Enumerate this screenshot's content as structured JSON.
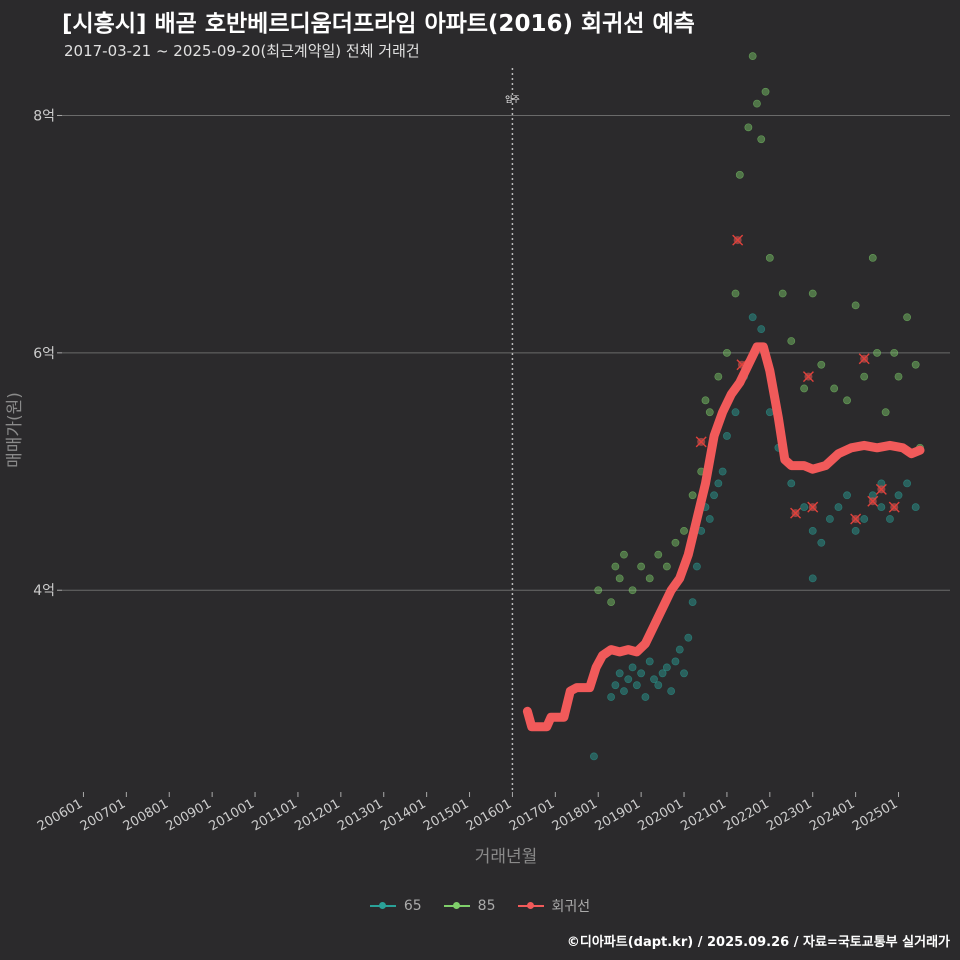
{
  "header": {
    "title": "[시흥시] 배곧 호반베르디움더프라임 아파트(2016) 회귀선 예측",
    "subtitle": "2017-03-21 ~ 2025-09-20(최근계약일) 전체 거래건"
  },
  "footer": {
    "credit": "©디아파트(dapt.kr) / 2025.09.26 / 자료=국토교통부 실거래가"
  },
  "legend": [
    {
      "label": "65",
      "color": "#2aa198"
    },
    {
      "label": "85",
      "color": "#7fcf6a"
    },
    {
      "label": "회귀선",
      "color": "#f15a5a"
    }
  ],
  "chart_data": {
    "type": "scatter",
    "title": "[시흥시] 배곧 호반베르디움더프라임 아파트(2016) 회귀선 예측",
    "xlabel": "거래년월",
    "ylabel": "매매가(원)",
    "x_ticks": [
      "200601",
      "200701",
      "200801",
      "200901",
      "201001",
      "201101",
      "201201",
      "201301",
      "201401",
      "201501",
      "201601",
      "201701",
      "201801",
      "201901",
      "202001",
      "202101",
      "202201",
      "202301",
      "202401",
      "202501"
    ],
    "y_ticks": [
      {
        "value": 4,
        "label": "4억"
      },
      {
        "value": 6,
        "label": "6억"
      },
      {
        "value": 8,
        "label": "8억"
      }
    ],
    "xlim": [
      2005.5,
      2026.2
    ],
    "ylim": [
      2.3,
      8.4
    ],
    "grid": "horizontal",
    "legend_position": "bottom",
    "vline": {
      "x": 2016.0,
      "label": "입주"
    },
    "colors": {
      "65": "#2aa198",
      "85": "#7fcf6a",
      "regression": "#f15a5a"
    },
    "series": [
      {
        "name": "65",
        "points": [
          [
            2018.3,
            3.1
          ],
          [
            2018.4,
            3.2
          ],
          [
            2018.5,
            3.3
          ],
          [
            2018.6,
            3.15
          ],
          [
            2018.7,
            3.25
          ],
          [
            2018.8,
            3.35
          ],
          [
            2018.9,
            3.2
          ],
          [
            2019.0,
            3.3
          ],
          [
            2019.1,
            3.1
          ],
          [
            2019.2,
            3.4
          ],
          [
            2019.3,
            3.25
          ],
          [
            2019.4,
            3.2
          ],
          [
            2019.5,
            3.3
          ],
          [
            2019.6,
            3.35
          ],
          [
            2019.7,
            3.15
          ],
          [
            2019.8,
            3.4
          ],
          [
            2019.9,
            3.5
          ],
          [
            2020.0,
            3.3
          ],
          [
            2020.1,
            3.6
          ],
          [
            2020.2,
            3.9
          ],
          [
            2020.3,
            4.2
          ],
          [
            2020.4,
            4.5
          ],
          [
            2020.5,
            4.7
          ],
          [
            2020.6,
            4.6
          ],
          [
            2020.7,
            4.8
          ],
          [
            2020.8,
            4.9
          ],
          [
            2020.9,
            5.0
          ],
          [
            2021.0,
            5.3
          ],
          [
            2021.2,
            5.5
          ],
          [
            2021.4,
            5.8
          ],
          [
            2021.6,
            6.3
          ],
          [
            2021.8,
            6.2
          ],
          [
            2022.0,
            5.5
          ],
          [
            2022.2,
            5.2
          ],
          [
            2022.5,
            4.9
          ],
          [
            2022.8,
            4.7
          ],
          [
            2023.0,
            4.5
          ],
          [
            2023.2,
            4.4
          ],
          [
            2023.4,
            4.6
          ],
          [
            2023.6,
            4.7
          ],
          [
            2023.8,
            4.8
          ],
          [
            2024.0,
            4.5
          ],
          [
            2024.2,
            4.6
          ],
          [
            2024.4,
            4.8
          ],
          [
            2024.6,
            4.9
          ],
          [
            2024.8,
            4.6
          ],
          [
            2025.0,
            4.8
          ],
          [
            2025.2,
            4.9
          ],
          [
            2025.4,
            4.7
          ],
          [
            2017.9,
            2.6
          ],
          [
            2023.0,
            4.1
          ],
          [
            2024.6,
            4.7
          ]
        ]
      },
      {
        "name": "85",
        "points": [
          [
            2018.0,
            4.0
          ],
          [
            2018.3,
            3.9
          ],
          [
            2018.4,
            4.2
          ],
          [
            2018.5,
            4.1
          ],
          [
            2018.6,
            4.3
          ],
          [
            2018.8,
            4.0
          ],
          [
            2019.0,
            4.2
          ],
          [
            2019.2,
            4.1
          ],
          [
            2019.4,
            4.3
          ],
          [
            2019.6,
            4.2
          ],
          [
            2019.8,
            4.4
          ],
          [
            2020.0,
            4.5
          ],
          [
            2020.2,
            4.8
          ],
          [
            2020.4,
            5.0
          ],
          [
            2020.6,
            5.5
          ],
          [
            2020.8,
            5.8
          ],
          [
            2021.0,
            6.0
          ],
          [
            2021.2,
            6.5
          ],
          [
            2021.3,
            7.5
          ],
          [
            2021.5,
            7.9
          ],
          [
            2021.6,
            8.5
          ],
          [
            2021.7,
            8.1
          ],
          [
            2021.8,
            7.8
          ],
          [
            2021.9,
            8.2
          ],
          [
            2022.0,
            6.8
          ],
          [
            2022.3,
            6.5
          ],
          [
            2022.5,
            6.1
          ],
          [
            2022.8,
            5.7
          ],
          [
            2023.0,
            6.5
          ],
          [
            2023.2,
            5.9
          ],
          [
            2023.5,
            5.7
          ],
          [
            2023.8,
            5.6
          ],
          [
            2024.0,
            6.4
          ],
          [
            2024.2,
            5.8
          ],
          [
            2024.4,
            6.8
          ],
          [
            2024.5,
            6.0
          ],
          [
            2024.7,
            5.5
          ],
          [
            2024.9,
            6.0
          ],
          [
            2025.0,
            5.8
          ],
          [
            2025.2,
            6.3
          ],
          [
            2025.4,
            5.9
          ],
          [
            2025.5,
            5.2
          ],
          [
            2020.5,
            5.6
          ],
          [
            2020.7,
            5.3
          ]
        ]
      },
      {
        "name": "회귀선",
        "points": [
          [
            2016.35,
            2.98
          ],
          [
            2016.45,
            2.85
          ],
          [
            2016.8,
            2.85
          ],
          [
            2016.9,
            2.93
          ],
          [
            2017.2,
            2.93
          ],
          [
            2017.35,
            3.15
          ],
          [
            2017.5,
            3.18
          ],
          [
            2017.8,
            3.18
          ],
          [
            2017.95,
            3.35
          ],
          [
            2018.1,
            3.45
          ],
          [
            2018.3,
            3.5
          ],
          [
            2018.5,
            3.48
          ],
          [
            2018.7,
            3.5
          ],
          [
            2018.9,
            3.48
          ],
          [
            2019.1,
            3.55
          ],
          [
            2019.3,
            3.7
          ],
          [
            2019.5,
            3.85
          ],
          [
            2019.7,
            4.0
          ],
          [
            2019.9,
            4.1
          ],
          [
            2020.1,
            4.3
          ],
          [
            2020.3,
            4.6
          ],
          [
            2020.5,
            4.9
          ],
          [
            2020.7,
            5.3
          ],
          [
            2020.9,
            5.5
          ],
          [
            2021.1,
            5.65
          ],
          [
            2021.3,
            5.75
          ],
          [
            2021.5,
            5.9
          ],
          [
            2021.7,
            6.05
          ],
          [
            2021.85,
            6.05
          ],
          [
            2022.0,
            5.85
          ],
          [
            2022.2,
            5.45
          ],
          [
            2022.35,
            5.1
          ],
          [
            2022.5,
            5.05
          ],
          [
            2022.8,
            5.05
          ],
          [
            2023.0,
            5.02
          ],
          [
            2023.3,
            5.05
          ],
          [
            2023.6,
            5.15
          ],
          [
            2023.9,
            5.2
          ],
          [
            2024.2,
            5.22
          ],
          [
            2024.5,
            5.2
          ],
          [
            2024.8,
            5.22
          ],
          [
            2025.1,
            5.2
          ],
          [
            2025.3,
            5.15
          ],
          [
            2025.5,
            5.18
          ]
        ]
      }
    ],
    "highlighted_points": [
      [
        2021.25,
        6.95
      ],
      [
        2021.35,
        5.9
      ],
      [
        2020.4,
        5.25
      ],
      [
        2022.6,
        4.65
      ],
      [
        2022.9,
        5.8
      ],
      [
        2023.0,
        4.7
      ],
      [
        2024.2,
        5.95
      ],
      [
        2024.4,
        4.75
      ],
      [
        2024.6,
        4.85
      ],
      [
        2024.9,
        4.7
      ],
      [
        2024.0,
        4.6
      ]
    ]
  }
}
